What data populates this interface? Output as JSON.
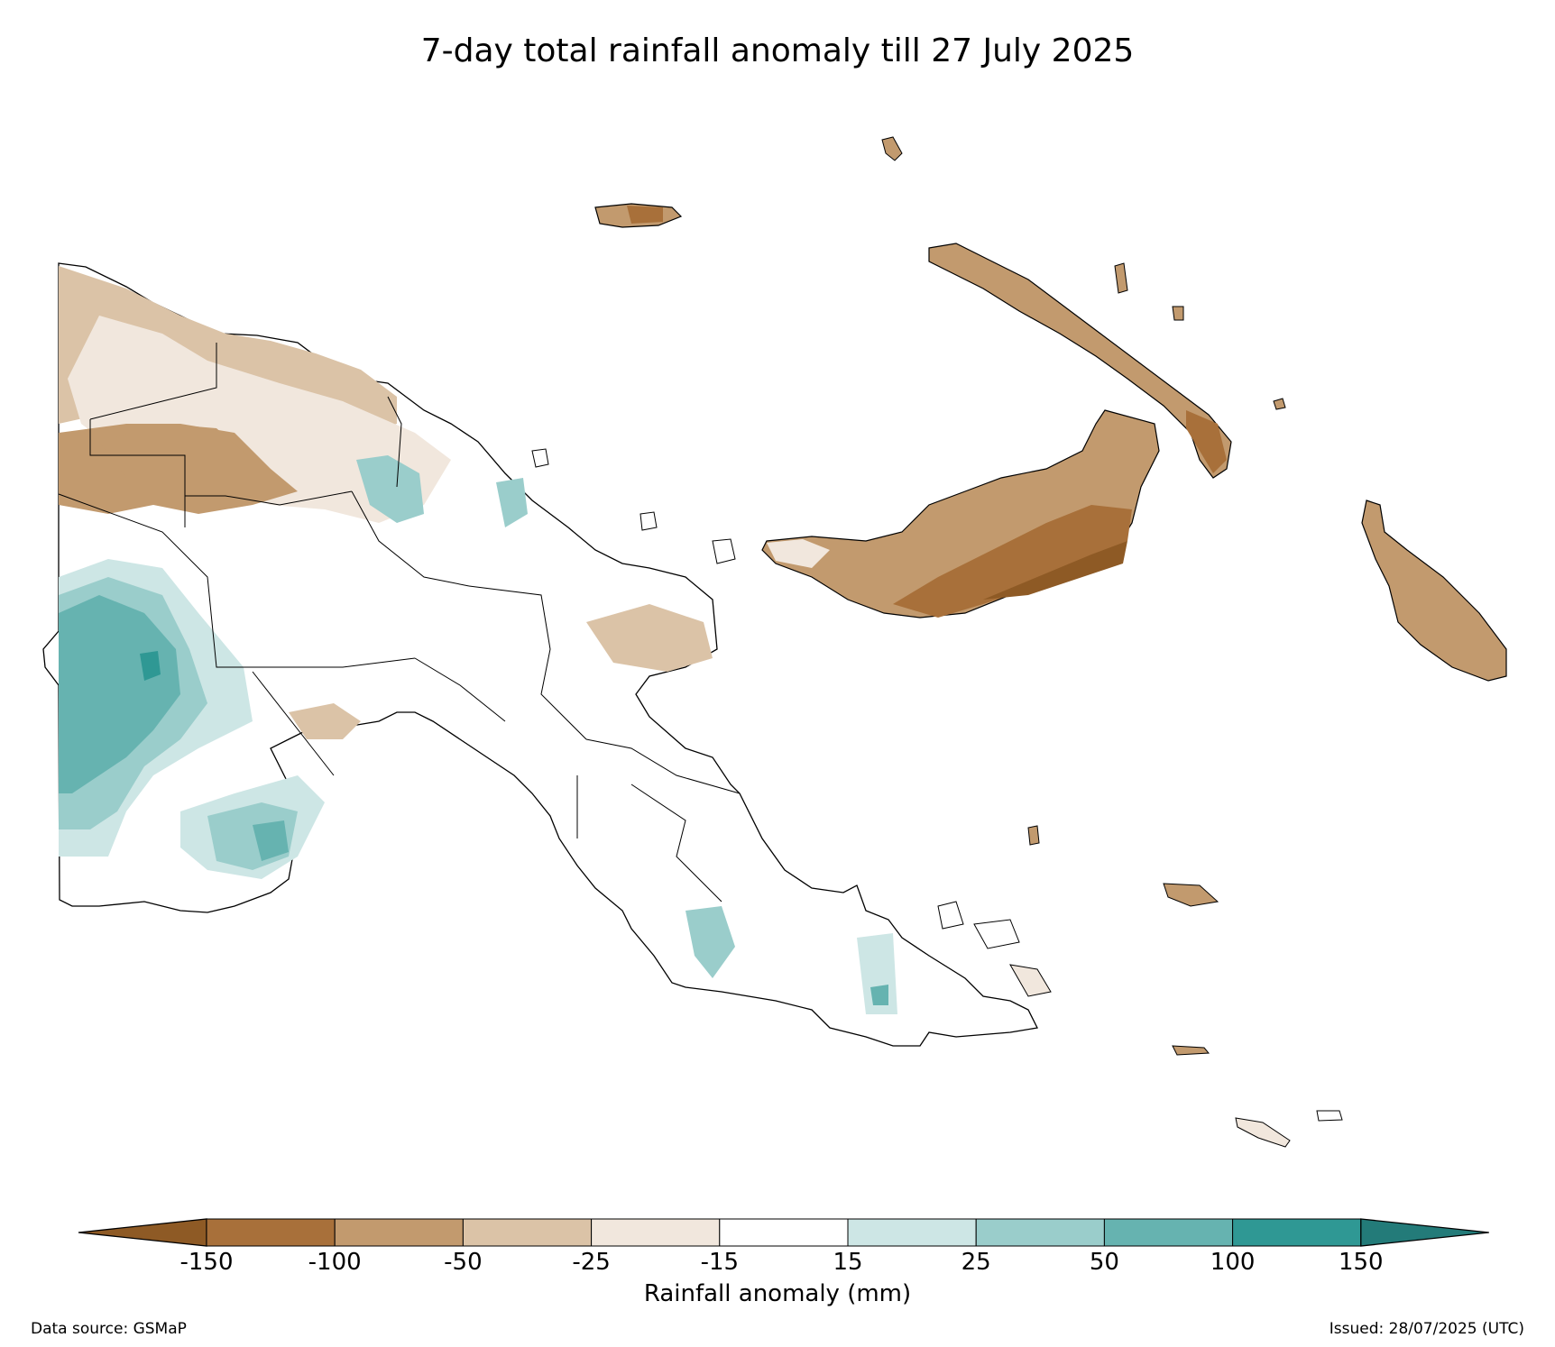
{
  "title": "7-day total rainfall anomaly till 27 July 2025",
  "colorbar": {
    "label": "Rainfall anomaly (mm)",
    "ticks": [
      "-150",
      "-100",
      "-50",
      "-25",
      "-15",
      "15",
      "25",
      "50",
      "100",
      "150"
    ],
    "colors": {
      "below_min": "#8e5a25",
      "bins": [
        "#a8703a",
        "#c29a6e",
        "#dbc3a7",
        "#f1e7dd",
        "#ffffff",
        "#cde6e5",
        "#9acdcb",
        "#66b3b0",
        "#2f9894"
      ],
      "above_max": "#237b79"
    }
  },
  "footer": {
    "source": "Data source: GSMaP",
    "issued": "Issued: 28/07/2025 (UTC)"
  }
}
